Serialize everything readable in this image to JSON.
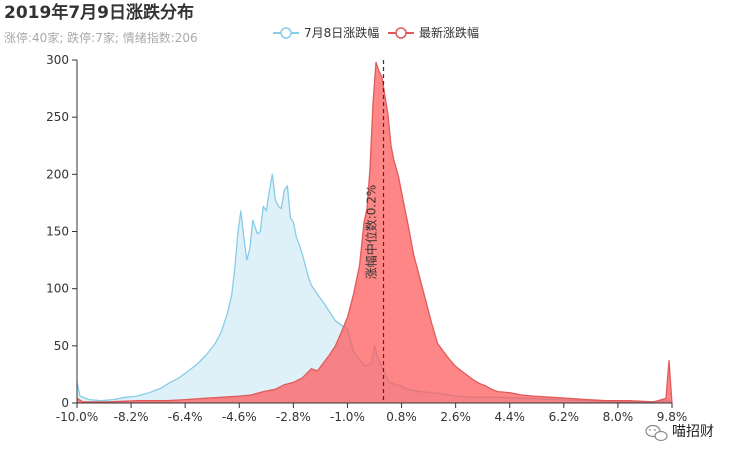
{
  "chart_data": {
    "type": "area",
    "title": "2019年7月9日涨跌分布",
    "subtitle": "涨停:40家; 跌停:7家; 情绪指数:206",
    "x_tick_labels": [
      "-10.0%",
      "-8.2%",
      "-6.4%",
      "-4.6%",
      "-2.8%",
      "-1.0%",
      "0.8%",
      "2.6%",
      "4.4%",
      "6.2%",
      "8.0%",
      "9.8%"
    ],
    "y_ticks": [
      0,
      50,
      100,
      150,
      200,
      250,
      300
    ],
    "xlim": [
      -10.0,
      9.8
    ],
    "ylim": [
      0,
      300
    ],
    "grid": false,
    "legend_position": "top",
    "mark_line": {
      "x": 0.2,
      "label": "涨幅中位数:0.2%",
      "color": "#333333"
    },
    "series": [
      {
        "name": "7月8日涨跌幅",
        "color": "#87cde6",
        "fill": "rgba(135,206,235,0.28)",
        "points": [
          [
            -10.0,
            18
          ],
          [
            -9.9,
            6
          ],
          [
            -9.6,
            3
          ],
          [
            -9.2,
            2
          ],
          [
            -8.8,
            3
          ],
          [
            -8.4,
            5
          ],
          [
            -8.0,
            6
          ],
          [
            -7.6,
            9
          ],
          [
            -7.2,
            13
          ],
          [
            -6.9,
            18
          ],
          [
            -6.6,
            22
          ],
          [
            -6.3,
            28
          ],
          [
            -6.0,
            34
          ],
          [
            -5.7,
            42
          ],
          [
            -5.4,
            52
          ],
          [
            -5.2,
            62
          ],
          [
            -5.0,
            78
          ],
          [
            -4.85,
            95
          ],
          [
            -4.75,
            118
          ],
          [
            -4.65,
            148
          ],
          [
            -4.55,
            168
          ],
          [
            -4.45,
            145
          ],
          [
            -4.35,
            125
          ],
          [
            -4.25,
            135
          ],
          [
            -4.15,
            160
          ],
          [
            -4.0,
            148
          ],
          [
            -3.9,
            150
          ],
          [
            -3.8,
            172
          ],
          [
            -3.7,
            168
          ],
          [
            -3.6,
            185
          ],
          [
            -3.5,
            200
          ],
          [
            -3.4,
            178
          ],
          [
            -3.3,
            172
          ],
          [
            -3.2,
            170
          ],
          [
            -3.1,
            186
          ],
          [
            -3.0,
            190
          ],
          [
            -2.9,
            162
          ],
          [
            -2.8,
            158
          ],
          [
            -2.7,
            145
          ],
          [
            -2.6,
            138
          ],
          [
            -2.5,
            130
          ],
          [
            -2.4,
            120
          ],
          [
            -2.3,
            110
          ],
          [
            -2.2,
            103
          ],
          [
            -2.0,
            95
          ],
          [
            -1.8,
            88
          ],
          [
            -1.6,
            80
          ],
          [
            -1.4,
            72
          ],
          [
            -1.2,
            68
          ],
          [
            -1.0,
            65
          ],
          [
            -0.8,
            45
          ],
          [
            -0.6,
            38
          ],
          [
            -0.4,
            32
          ],
          [
            -0.2,
            35
          ],
          [
            -0.1,
            50
          ],
          [
            0.0,
            40
          ],
          [
            0.2,
            28
          ],
          [
            0.4,
            18
          ],
          [
            0.6,
            16
          ],
          [
            0.8,
            15
          ],
          [
            1.0,
            12
          ],
          [
            1.4,
            10
          ],
          [
            1.8,
            9
          ],
          [
            2.2,
            8
          ],
          [
            2.6,
            6
          ],
          [
            3.2,
            5
          ],
          [
            4.0,
            5
          ],
          [
            5.0,
            4
          ],
          [
            6.0,
            3
          ],
          [
            7.0,
            2
          ],
          [
            8.0,
            1
          ],
          [
            9.0,
            1
          ],
          [
            9.7,
            2
          ],
          [
            9.8,
            0
          ]
        ]
      },
      {
        "name": "最新涨跌幅",
        "color": "#e05a5a",
        "fill": "rgba(255,88,88,0.72)",
        "points": [
          [
            -10.0,
            4
          ],
          [
            -9.8,
            1
          ],
          [
            -9.0,
            1
          ],
          [
            -8.0,
            2
          ],
          [
            -7.0,
            2
          ],
          [
            -6.4,
            3
          ],
          [
            -5.8,
            4
          ],
          [
            -5.2,
            5
          ],
          [
            -4.6,
            6
          ],
          [
            -4.2,
            7
          ],
          [
            -3.8,
            10
          ],
          [
            -3.4,
            12
          ],
          [
            -3.1,
            16
          ],
          [
            -2.8,
            18
          ],
          [
            -2.5,
            22
          ],
          [
            -2.2,
            30
          ],
          [
            -2.0,
            28
          ],
          [
            -1.8,
            35
          ],
          [
            -1.6,
            42
          ],
          [
            -1.4,
            50
          ],
          [
            -1.2,
            62
          ],
          [
            -1.0,
            75
          ],
          [
            -0.8,
            95
          ],
          [
            -0.6,
            120
          ],
          [
            -0.45,
            158
          ],
          [
            -0.35,
            170
          ],
          [
            -0.25,
            205
          ],
          [
            -0.15,
            262
          ],
          [
            -0.05,
            298
          ],
          [
            0.05,
            290
          ],
          [
            0.15,
            285
          ],
          [
            0.25,
            268
          ],
          [
            0.35,
            252
          ],
          [
            0.45,
            225
          ],
          [
            0.55,
            212
          ],
          [
            0.7,
            198
          ],
          [
            0.85,
            178
          ],
          [
            1.0,
            158
          ],
          [
            1.2,
            130
          ],
          [
            1.4,
            110
          ],
          [
            1.6,
            90
          ],
          [
            1.8,
            70
          ],
          [
            2.0,
            52
          ],
          [
            2.2,
            45
          ],
          [
            2.4,
            38
          ],
          [
            2.6,
            32
          ],
          [
            2.8,
            28
          ],
          [
            3.0,
            24
          ],
          [
            3.2,
            20
          ],
          [
            3.4,
            17
          ],
          [
            3.6,
            15
          ],
          [
            3.8,
            12
          ],
          [
            4.0,
            10
          ],
          [
            4.4,
            9
          ],
          [
            4.8,
            7
          ],
          [
            5.2,
            6
          ],
          [
            5.8,
            5
          ],
          [
            6.4,
            4
          ],
          [
            7.0,
            3
          ],
          [
            7.6,
            2
          ],
          [
            8.4,
            2
          ],
          [
            9.2,
            1
          ],
          [
            9.6,
            4
          ],
          [
            9.7,
            37
          ],
          [
            9.8,
            0
          ]
        ]
      }
    ]
  },
  "watermark": {
    "text": "喵招财",
    "icon": "wechat-icon"
  }
}
